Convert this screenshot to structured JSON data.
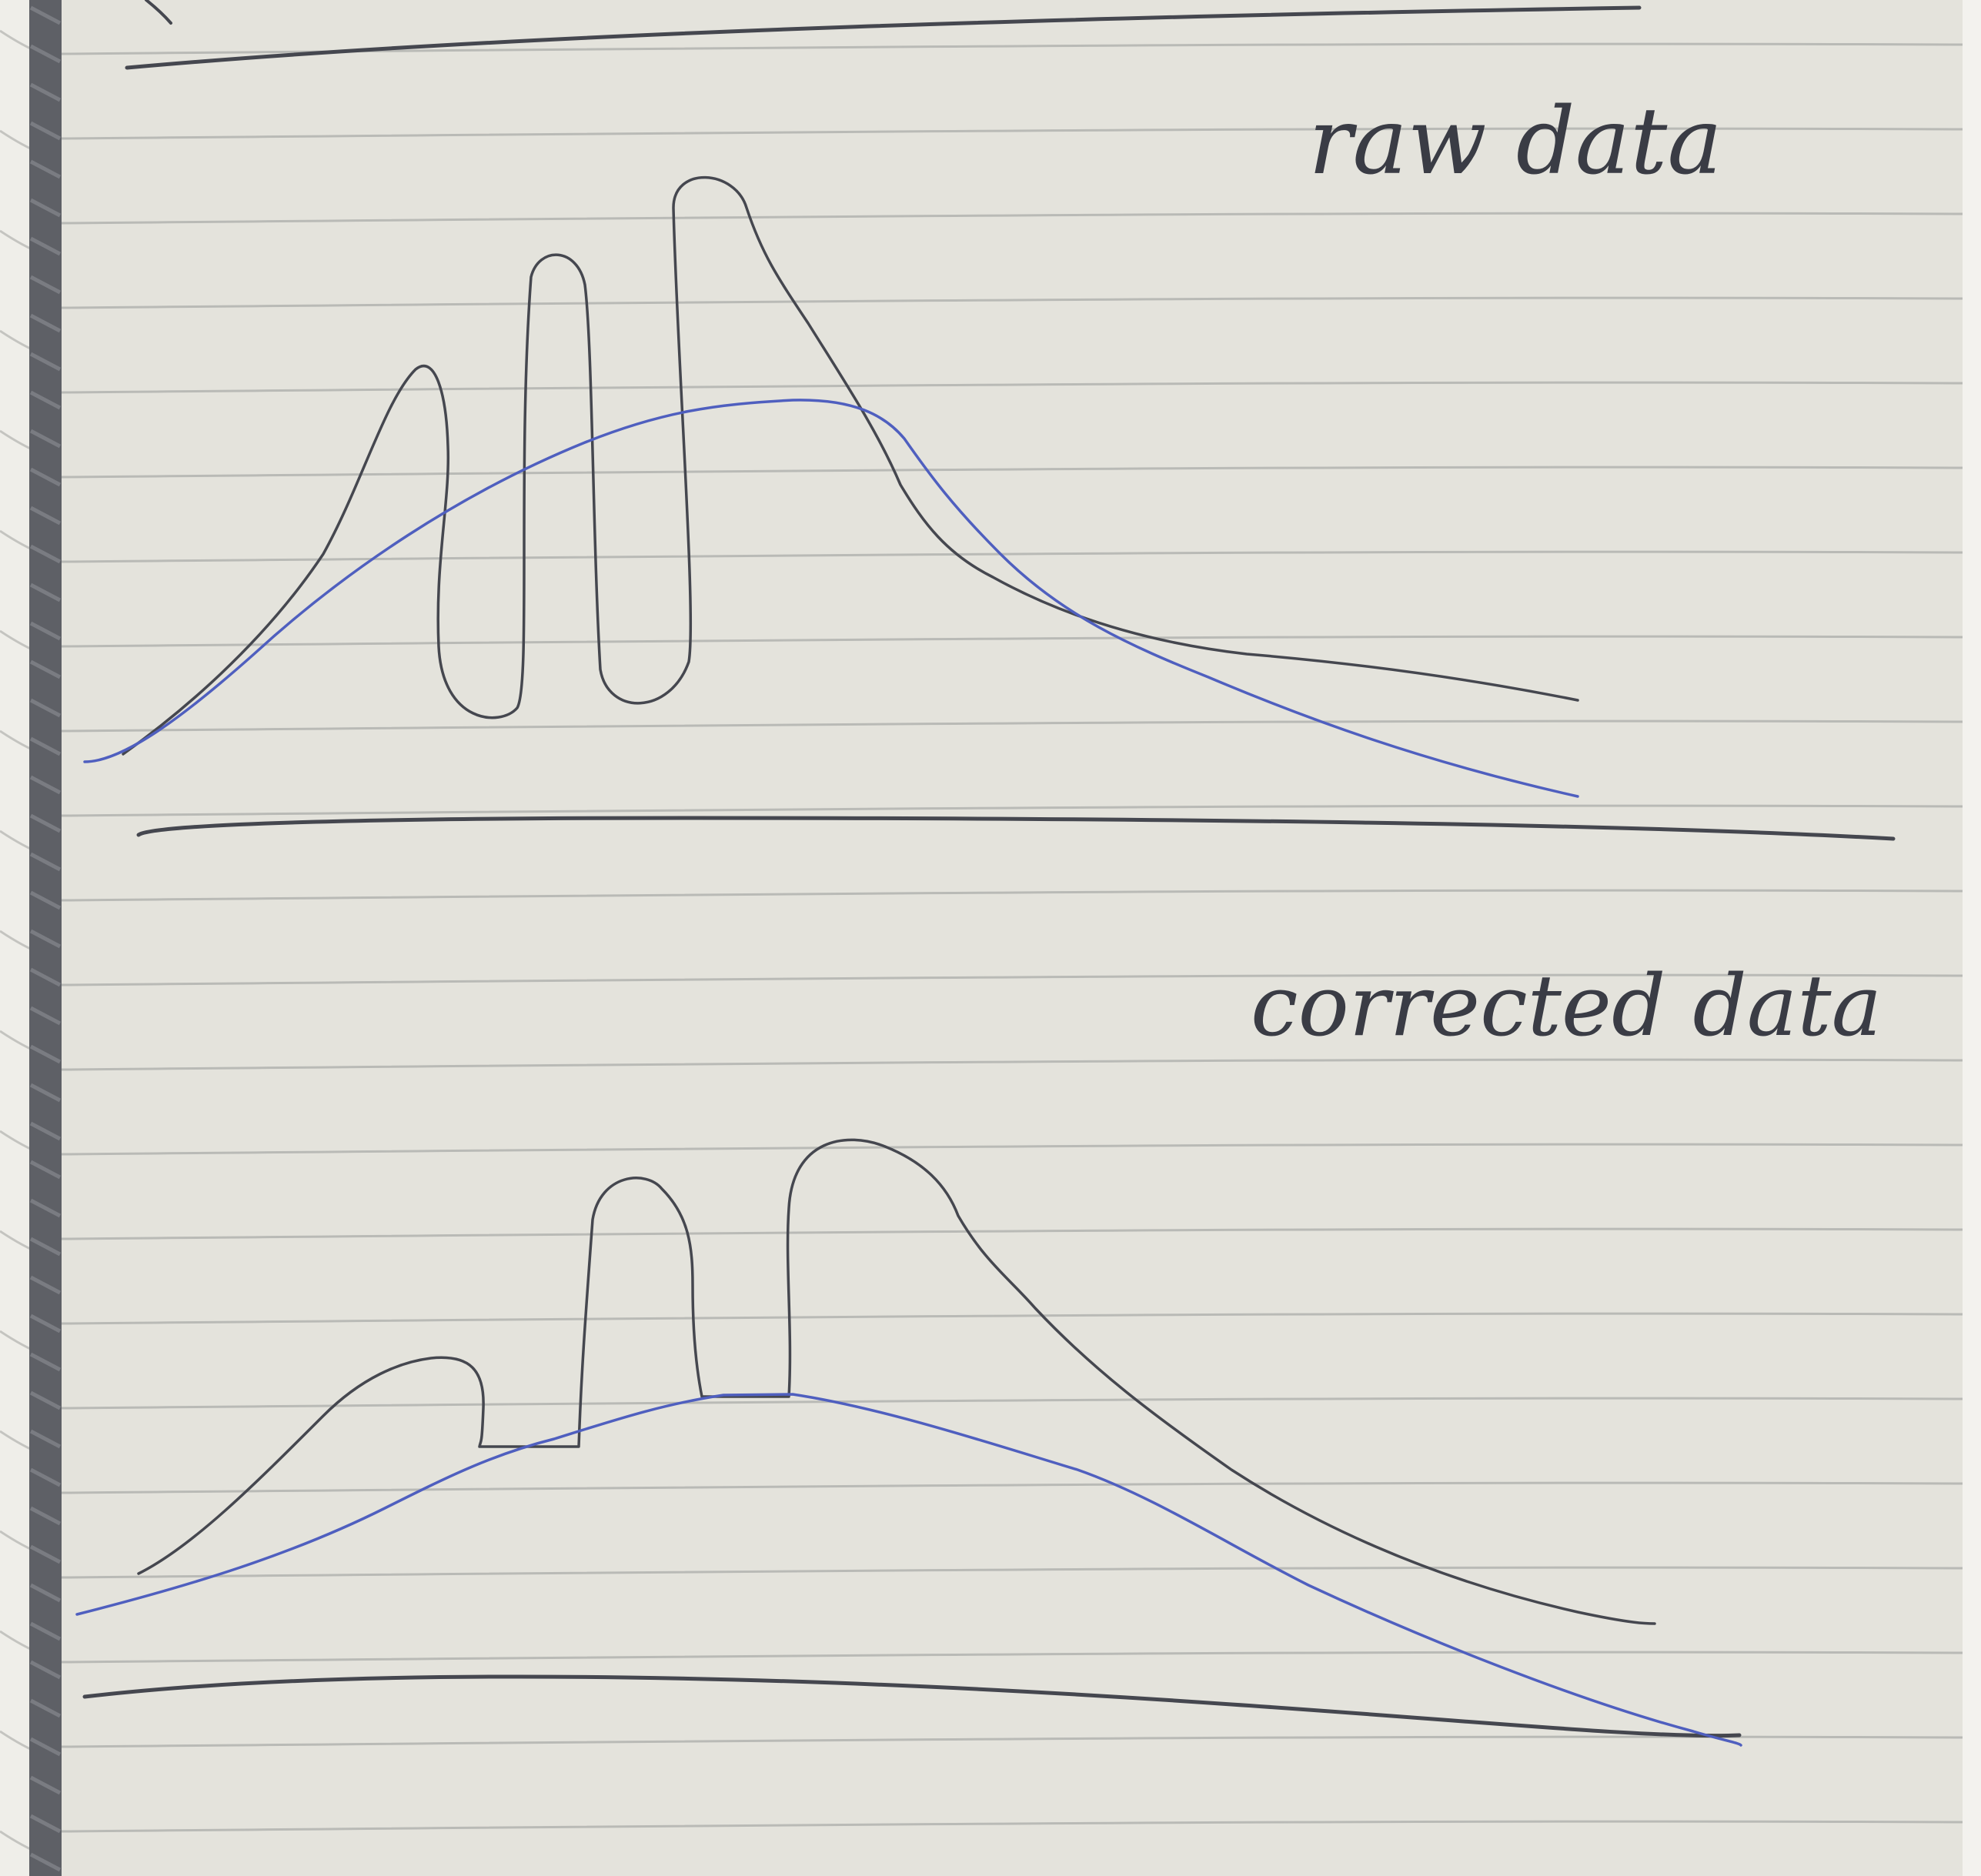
{
  "notebook": {
    "paper_color": "#e4e3dc",
    "rule_color": "#b9bab6",
    "spine_color": "#5a5c62",
    "edge_color": "#f1f0ec"
  },
  "sketches": [
    {
      "label": "raw data",
      "ink_color": "#45474f",
      "fit_color": "#4f5fbf"
    },
    {
      "label": "corrected data",
      "ink_color": "#45474f",
      "fit_color": "#4f5fbf"
    }
  ]
}
